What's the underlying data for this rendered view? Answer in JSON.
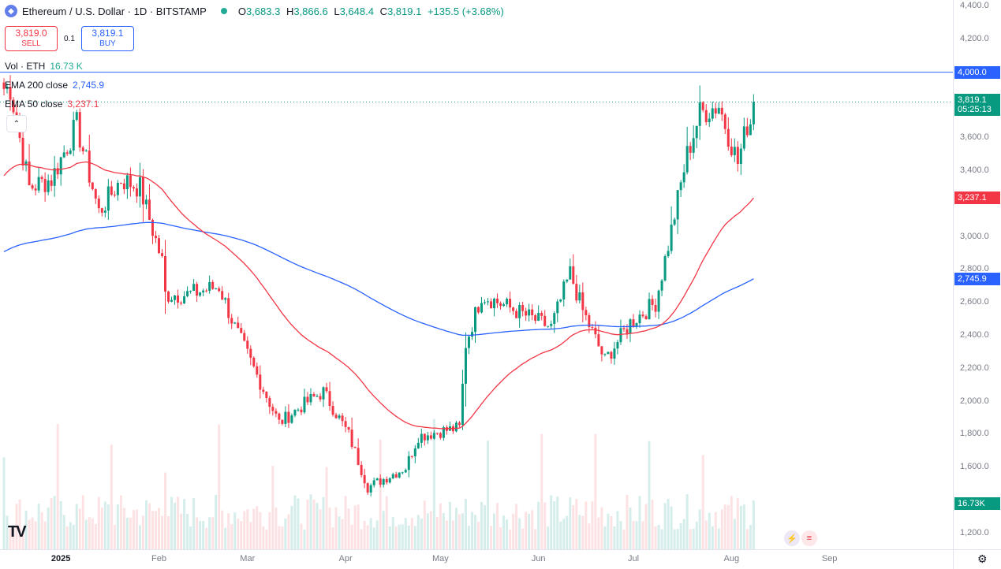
{
  "header": {
    "title": "Ethereum / U.S. Dollar · 1D · BITSTAMP",
    "coin_icon": "ethereum-icon",
    "ohlc": {
      "o_label": "O",
      "o": "3,683.3",
      "h_label": "H",
      "h": "3,866.6",
      "l_label": "L",
      "l": "3,648.4",
      "c_label": "C",
      "c": "3,819.1",
      "change": "+135.5 (+3.68%)"
    }
  },
  "trade": {
    "sell_price": "3,819.0",
    "sell_label": "SELL",
    "spread": "0.1",
    "buy_price": "3,819.1",
    "buy_label": "BUY"
  },
  "legend": {
    "vol_label": "Vol · ETH",
    "vol_value": "16.73 K",
    "ema200_label": "EMA 200 close",
    "ema200_value": "2,745.9",
    "ema50_label": "EMA 50 close",
    "ema50_value": "3,237.1"
  },
  "price_axis": {
    "ticks": [
      "4,400.0",
      "4,200.0",
      "3,600.0",
      "3,400.0",
      "3,000.0",
      "2,800.0",
      "2,600.0",
      "2,400.0",
      "2,200.0",
      "2,000.0",
      "1,800.0",
      "1,600.0",
      "1,200.0"
    ],
    "labels": {
      "level": "4,000.0",
      "last_price": "3,819.1",
      "countdown": "05:25:13",
      "ema50": "3,237.1",
      "ema200": "2,745.9",
      "volume": "16.73K"
    }
  },
  "time_axis": {
    "ticks": [
      "2025",
      "Feb",
      "Mar",
      "Apr",
      "May",
      "Jun",
      "Jul",
      "Aug",
      "Sep"
    ]
  },
  "colors": {
    "up": "#089981",
    "down": "#f23645",
    "ema200": "#2962ff",
    "ema50": "#f23645",
    "vol_up": "#b2dfdb",
    "vol_down": "#fccbcd",
    "level": "#2962ff"
  },
  "chart_data": {
    "type": "candlestick",
    "symbol": "ETHUSD",
    "interval": "1D",
    "exchange": "BITSTAMP",
    "ylim": [
      1200,
      4400
    ],
    "level_line": 4000,
    "waypoints": [
      {
        "date": "2024-12-16",
        "close": 3900
      },
      {
        "date": "2024-12-22",
        "close": 3300
      },
      {
        "date": "2024-12-29",
        "close": 3350
      },
      {
        "date": "2025-01-06",
        "close": 3680
      },
      {
        "date": "2025-01-13",
        "close": 3150
      },
      {
        "date": "2025-01-20",
        "close": 3350
      },
      {
        "date": "2025-01-26",
        "close": 3300
      },
      {
        "date": "2025-02-02",
        "close": 2850
      },
      {
        "date": "2025-02-03",
        "close": 2650
      },
      {
        "date": "2025-02-10",
        "close": 2650
      },
      {
        "date": "2025-02-20",
        "close": 2700
      },
      {
        "date": "2025-02-25",
        "close": 2450
      },
      {
        "date": "2025-03-03",
        "close": 2200
      },
      {
        "date": "2025-03-11",
        "close": 1870
      },
      {
        "date": "2025-03-20",
        "close": 2000
      },
      {
        "date": "2025-03-25",
        "close": 2060
      },
      {
        "date": "2025-04-02",
        "close": 1800
      },
      {
        "date": "2025-04-08",
        "close": 1480
      },
      {
        "date": "2025-04-20",
        "close": 1600
      },
      {
        "date": "2025-04-24",
        "close": 1790
      },
      {
        "date": "2025-05-01",
        "close": 1820
      },
      {
        "date": "2025-05-07",
        "close": 1840
      },
      {
        "date": "2025-05-09",
        "close": 2350
      },
      {
        "date": "2025-05-14",
        "close": 2650
      },
      {
        "date": "2025-05-25",
        "close": 2550
      },
      {
        "date": "2025-06-05",
        "close": 2450
      },
      {
        "date": "2025-06-11",
        "close": 2780
      },
      {
        "date": "2025-06-15",
        "close": 2550
      },
      {
        "date": "2025-06-22",
        "close": 2250
      },
      {
        "date": "2025-06-30",
        "close": 2480
      },
      {
        "date": "2025-07-08",
        "close": 2600
      },
      {
        "date": "2025-07-12",
        "close": 2950
      },
      {
        "date": "2025-07-18",
        "close": 3500
      },
      {
        "date": "2025-07-22",
        "close": 3750
      },
      {
        "date": "2025-07-28",
        "close": 3800
      },
      {
        "date": "2025-08-03",
        "close": 3450
      },
      {
        "date": "2025-08-06",
        "close": 3683.3
      },
      {
        "date": "2025-08-08",
        "close": 3819.1
      }
    ],
    "last_candle": {
      "open": 3683.3,
      "high": 3866.6,
      "low": 3648.4,
      "close": 3819.1,
      "change": 135.5,
      "change_pct": 3.68
    },
    "ema200_last": 2745.9,
    "ema50_last": 3237.1,
    "volume_last": "16.73K"
  }
}
